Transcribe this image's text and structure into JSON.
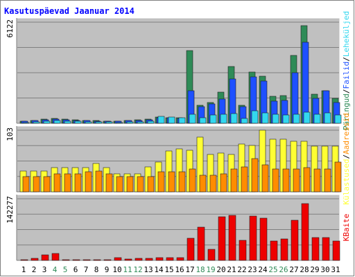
{
  "title": "Kasutuspäevad Jaanuar 2014",
  "colors": {
    "background": "#ffffff",
    "panel": "#c0c0c0",
    "frame_outer": "#808080",
    "grid": "#808080",
    "title_text": "#0000ff",
    "pageviews": "#2e8b57",
    "hits": "#1e50ff",
    "visits": "#33d7ef",
    "visitors": "#ffff33",
    "sites": "#ff8c00",
    "bytes": "#ee0000",
    "weekend_label": "#2e8b57",
    "weekday_label": "#000000"
  },
  "days": [
    "1",
    "2",
    "3",
    "4",
    "5",
    "6",
    "7",
    "8",
    "9",
    "10",
    "11",
    "12",
    "13",
    "14",
    "15",
    "16",
    "17",
    "18",
    "19",
    "20",
    "21",
    "22",
    "23",
    "24",
    "25",
    "26",
    "27",
    "28",
    "29",
    "30",
    "31"
  ],
  "weekend_days": [
    "4",
    "5",
    "11",
    "12",
    "18",
    "19",
    "25",
    "26"
  ],
  "chart_data": [
    {
      "type": "bar",
      "panel": "top",
      "ymax_label": "6122",
      "ylim": [
        0,
        6122
      ],
      "legend": [
        {
          "text": "Päringud",
          "color": "#2e8b57"
        },
        {
          "text": "/",
          "color": "#000000"
        },
        {
          "text": "Failid",
          "color": "#1e50ff"
        },
        {
          "text": "/",
          "color": "#000000"
        },
        {
          "text": "Leheküljed",
          "color": "#33d7ef"
        }
      ],
      "series": [
        {
          "name": "Päringud",
          "values": [
            130,
            180,
            260,
            300,
            240,
            200,
            170,
            150,
            140,
            130,
            170,
            190,
            240,
            360,
            340,
            330,
            4420,
            1080,
            1270,
            1890,
            3450,
            1070,
            3110,
            2860,
            1620,
            1660,
            4090,
            5930,
            1780,
            1950,
            1520
          ]
        },
        {
          "name": "Failid",
          "values": [
            120,
            160,
            230,
            260,
            220,
            180,
            150,
            130,
            120,
            110,
            150,
            170,
            210,
            330,
            320,
            310,
            1990,
            1020,
            1190,
            1460,
            2680,
            1010,
            2830,
            2550,
            1340,
            1370,
            3060,
            4910,
            1490,
            1960,
            1260
          ]
        },
        {
          "name": "Leheküljed",
          "values": [
            60,
            90,
            130,
            160,
            140,
            110,
            90,
            80,
            70,
            60,
            80,
            90,
            120,
            420,
            360,
            340,
            540,
            330,
            490,
            560,
            580,
            300,
            750,
            640,
            540,
            490,
            560,
            660,
            560,
            620,
            510
          ]
        }
      ]
    },
    {
      "type": "bar",
      "panel": "middle",
      "ymax_label": "103",
      "ylim": [
        0,
        103
      ],
      "legend": [
        {
          "text": "Külastused",
          "color": "#ffff33"
        },
        {
          "text": "/",
          "color": "#000000"
        },
        {
          "text": "Aadressid",
          "color": "#ff8c00"
        }
      ],
      "series": [
        {
          "name": "Külastused",
          "values": [
            35,
            35,
            35,
            40,
            40,
            40,
            40,
            48,
            40,
            30,
            30,
            30,
            42,
            50,
            68,
            72,
            70,
            92,
            62,
            65,
            62,
            80,
            77,
            103,
            88,
            88,
            85,
            84,
            76,
            76,
            76
          ]
        },
        {
          "name": "Aadressid",
          "values": [
            25,
            25,
            25,
            30,
            30,
            30,
            33,
            35,
            30,
            25,
            25,
            25,
            25,
            33,
            33,
            33,
            38,
            28,
            28,
            30,
            38,
            42,
            55,
            45,
            38,
            38,
            38,
            40,
            38,
            38,
            50
          ]
        }
      ]
    },
    {
      "type": "bar",
      "panel": "bottom",
      "ymax_label": "142277",
      "ylim": [
        0,
        142277
      ],
      "legend": [
        {
          "text": "KBaite",
          "color": "#ee0000"
        }
      ],
      "series": [
        {
          "name": "KBaite",
          "values": [
            2000,
            5000,
            13000,
            16000,
            2000,
            2000,
            2000,
            2000,
            2000,
            6000,
            3000,
            4000,
            5000,
            6000,
            6000,
            6000,
            51000,
            77000,
            26000,
            100000,
            104000,
            46000,
            103000,
            98000,
            44000,
            50000,
            93000,
            131000,
            53000,
            53000,
            45000
          ]
        }
      ]
    }
  ]
}
